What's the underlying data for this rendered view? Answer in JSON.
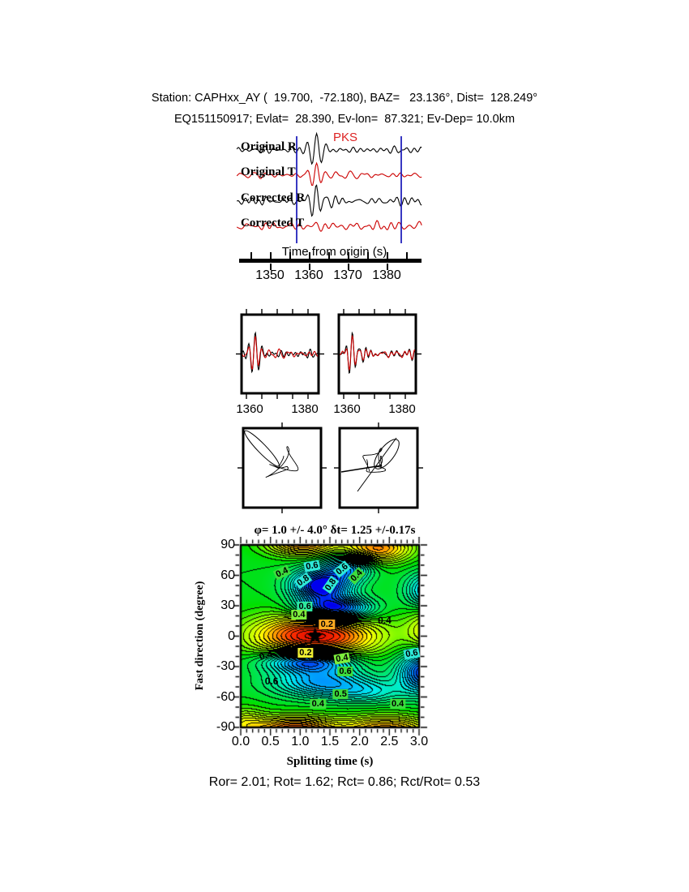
{
  "header": {
    "line1": "Station: CAPHxx_AY (  19.700,  -72.180), BAZ=   23.136°, Dist=  128.249°",
    "line2": "EQ151150917; Evlat=  28.390, Ev-lon=  87.321; Ev-Dep= 10.0km"
  },
  "phase_label": {
    "text": "PKS",
    "color": "#dd2222"
  },
  "waveform_section": {
    "traces": [
      {
        "label": "Original R",
        "color": "#000000"
      },
      {
        "label": "Original T",
        "color": "#cc0000"
      },
      {
        "label": "Corrected R",
        "color": "#000000"
      },
      {
        "label": "Corrected T",
        "color": "#cc0000"
      }
    ],
    "window_line_color": "#2222bb",
    "axis": {
      "title": "Time from origin (s)",
      "ticks": [
        "1350",
        "1360",
        "1370",
        "1380"
      ]
    }
  },
  "zoom_panels": {
    "left_ticks": [
      "1360",
      "1380"
    ],
    "right_ticks": [
      "1360",
      "1380"
    ]
  },
  "contour": {
    "title": "φ= 1.0 +/- 4.0° δt= 1.25 +/-0.17s",
    "xlabel": "Splitting time (s)",
    "ylabel": "Fast direction (degree)",
    "xticks": [
      "0.0",
      "0.5",
      "1.0",
      "1.5",
      "2.0",
      "2.5",
      "3.0"
    ],
    "yticks": [
      "90",
      "60",
      "30",
      "0",
      "-30",
      "-60",
      "-90"
    ]
  },
  "footer": {
    "text": "Ror= 2.01; Rot= 1.62; Rct= 0.86; Rct/Rot= 0.53"
  },
  "chart_data": [
    {
      "type": "line",
      "title": "Radial and transverse seismograms before/after splitting correction",
      "series": [
        {
          "name": "Original R",
          "color": "#000000"
        },
        {
          "name": "Original T",
          "color": "#cc0000"
        },
        {
          "name": "Corrected R",
          "color": "#000000"
        },
        {
          "name": "Corrected T",
          "color": "#cc0000"
        }
      ],
      "phase": "PKS",
      "xlabel": "Time from origin (s)",
      "xlim": [
        1342,
        1389
      ],
      "xticks": [
        1350,
        1360,
        1370,
        1380
      ],
      "analysis_window": [
        1357,
        1384
      ]
    },
    {
      "type": "line",
      "title": "Windowed waveform pairs (left: original R/T, right: corrected fast/slow)",
      "xlim": [
        1357,
        1385
      ],
      "xticks": [
        1360,
        1380
      ]
    },
    {
      "type": "scatter",
      "title": "Particle motion before (left) and after (right) correction"
    },
    {
      "type": "contour",
      "title": "φ= 1.0 +/- 4.0° δt= 1.25 +/-0.17s",
      "xlabel": "Splitting time (s)",
      "ylabel": "Fast direction (degree)",
      "xlim": [
        0,
        3
      ],
      "ylim": [
        -90,
        90
      ],
      "xticks": [
        0.0,
        0.5,
        1.0,
        1.5,
        2.0,
        2.5,
        3.0
      ],
      "yticks": [
        90,
        60,
        30,
        0,
        -30,
        -60,
        -90
      ],
      "best_solution": {
        "phi": 1.0,
        "phi_err": 4.0,
        "dt": 1.25,
        "dt_err": 0.17,
        "marker": "black-star",
        "at": [
          1.25,
          0
        ]
      },
      "energy_maximum_at": [
        1.25,
        0
      ],
      "minima_at": [
        [
          1.35,
          50
        ],
        [
          1.35,
          -45
        ],
        [
          3.1,
          -35
        ]
      ],
      "edge_maxima_at": [
        [
          1.05,
          90
        ],
        [
          2.3,
          87
        ],
        [
          0.9,
          -90
        ],
        [
          2.45,
          -90
        ]
      ],
      "contour_labels": [
        {
          "x": 0.7,
          "y": 63,
          "text": "0.4",
          "bg": "#3ddd3d",
          "rot": -25
        },
        {
          "x": 1.2,
          "y": 69,
          "text": "0.6",
          "bg": "#2ee8d8",
          "rot": -10
        },
        {
          "x": 1.05,
          "y": 55,
          "text": "0.8",
          "bg": "#2ee8d8",
          "rot": -35
        },
        {
          "x": 1.52,
          "y": 51,
          "text": "0.8",
          "bg": "#2ee8d8",
          "rot": -55
        },
        {
          "x": 1.7,
          "y": 66,
          "text": "0.6",
          "bg": "#2ee8d8",
          "rot": -40
        },
        {
          "x": 1.95,
          "y": 60,
          "text": "0.4",
          "bg": "#3ddd3d",
          "rot": -45
        },
        {
          "x": 1.08,
          "y": 29,
          "text": "0.6",
          "bg": "#2ee8a0",
          "rot": 0
        },
        {
          "x": 0.98,
          "y": 21,
          "text": "0.4",
          "bg": "#7dee3d",
          "rot": 0
        },
        {
          "x": 1.45,
          "y": 12,
          "text": "0.2",
          "bg": "#ffaa22",
          "rot": 0
        },
        {
          "x": 2.42,
          "y": 16,
          "text": "0.4",
          "bg": "",
          "rot": 0
        },
        {
          "x": 1.09,
          "y": -16,
          "text": "0.2",
          "bg": "#eeee33",
          "rot": 0
        },
        {
          "x": 0.42,
          "y": -19,
          "text": "0.4",
          "bg": "",
          "rot": -15
        },
        {
          "x": 1.7,
          "y": -22,
          "text": "0.4",
          "bg": "#7dee3d",
          "rot": -10
        },
        {
          "x": 1.76,
          "y": -35,
          "text": "0.6",
          "bg": "#3ddd3d",
          "rot": 0
        },
        {
          "x": 2.88,
          "y": -17,
          "text": "0.6",
          "bg": "#2ee8d8",
          "rot": -10
        },
        {
          "x": 0.52,
          "y": -44,
          "text": "0.6",
          "bg": "",
          "rot": 0
        },
        {
          "x": 1.68,
          "y": -57,
          "text": "0.5",
          "bg": "#3ddd3d",
          "rot": 0
        },
        {
          "x": 1.3,
          "y": -67,
          "text": "0.4",
          "bg": "#3ddd3d",
          "rot": 0
        },
        {
          "x": 2.64,
          "y": -67,
          "text": "0.4",
          "bg": "#3ddd3d",
          "rot": 0
        }
      ],
      "field_model": {
        "base": 0.48,
        "bumps": [
          [
            0.5,
            1.25,
            0,
            0.72,
            15
          ],
          [
            -0.52,
            1.35,
            50,
            0.33,
            11
          ],
          [
            -0.5,
            1.58,
            27,
            0.4,
            8
          ],
          [
            -0.48,
            1.15,
            -24,
            0.5,
            8
          ],
          [
            -0.3,
            1.35,
            -45,
            0.55,
            10
          ],
          [
            -0.45,
            3.1,
            -35,
            0.3,
            14
          ],
          [
            -0.28,
            3.15,
            45,
            0.25,
            12
          ],
          [
            -0.3,
            1.8,
            68,
            0.28,
            9
          ],
          [
            0.34,
            2.3,
            87,
            0.4,
            10
          ],
          [
            0.36,
            1.05,
            93,
            0.42,
            9
          ],
          [
            0.4,
            0.9,
            -92,
            0.5,
            9
          ],
          [
            0.34,
            2.45,
            -93,
            0.55,
            10
          ],
          [
            0.24,
            3.25,
            5,
            0.3,
            16
          ],
          [
            0.15,
            0.05,
            -85,
            0.25,
            10
          ],
          [
            -0.15,
            2.15,
            -55,
            0.45,
            8
          ]
        ]
      },
      "stats": {
        "Ror": 2.01,
        "Rot": 1.62,
        "Rct": 0.86,
        "Rct/Rot": 0.53
      }
    }
  ]
}
